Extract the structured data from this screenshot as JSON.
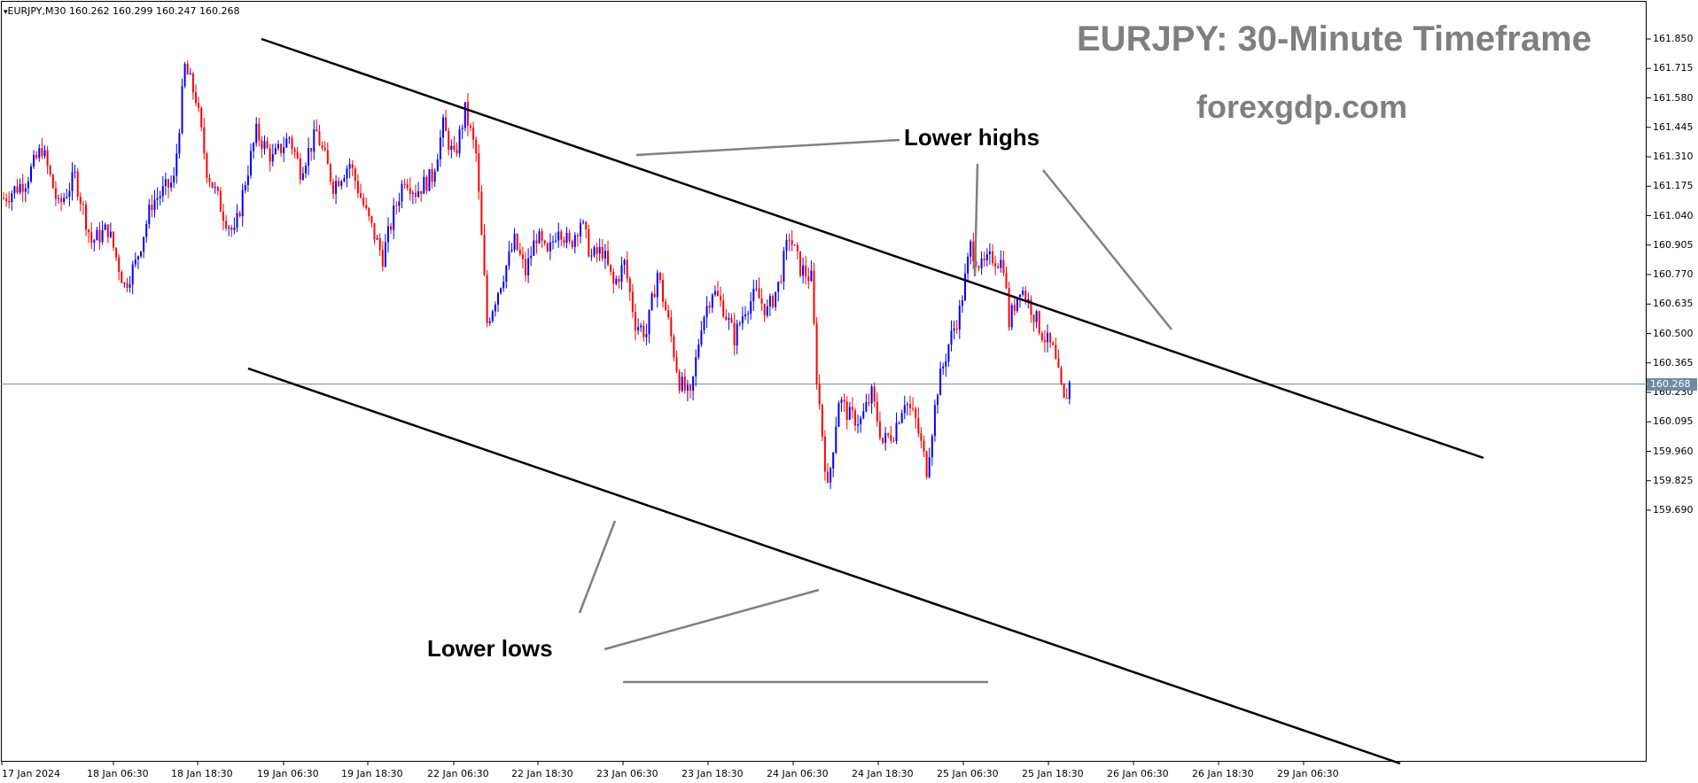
{
  "header": {
    "symbol_label": "EURJPY,M30",
    "ohlc": "160.262 160.299 160.247 160.268"
  },
  "overlay": {
    "title": "EURJPY: 30-Minute Timeframe",
    "site": "forexgdp.com",
    "lower_highs_label": "Lower highs",
    "lower_lows_label": "Lower lows"
  },
  "colors": {
    "bull_candle": "#0000ff",
    "bear_candle": "#ff0000",
    "channel_line": "#000000",
    "pointer_line": "#808080",
    "price_line": "#6e8aa6",
    "text_watermark": "#7f7f7f"
  },
  "chart_data": {
    "type": "candlestick",
    "symbol": "EURJPY",
    "timeframe": "M30",
    "ylim": [
      159.62,
      161.92
    ],
    "y_ticks": [
      "161.850",
      "161.715",
      "161.580",
      "161.445",
      "161.310",
      "161.175",
      "161.040",
      "160.905",
      "160.770",
      "160.635",
      "160.500",
      "160.365",
      "160.230",
      "160.095",
      "159.960",
      "159.825",
      "159.690"
    ],
    "x_ticks": [
      "17 Jan 2024",
      "18 Jan 06:30",
      "18 Jan 18:30",
      "19 Jan 06:30",
      "19 Jan 18:30",
      "22 Jan 06:30",
      "22 Jan 18:30",
      "23 Jan 06:30",
      "23 Jan 18:30",
      "24 Jan 06:30",
      "24 Jan 18:30",
      "25 Jan 06:30",
      "25 Jan 18:30",
      "26 Jan 06:30",
      "26 Jan 18:30",
      "29 Jan 06:30"
    ],
    "current_price": "160.268",
    "close_path": [
      [
        0,
        161.12
      ],
      [
        8,
        161.2
      ],
      [
        14,
        161.35
      ],
      [
        20,
        161.08
      ],
      [
        26,
        161.22
      ],
      [
        32,
        160.92
      ],
      [
        38,
        160.98
      ],
      [
        44,
        160.72
      ],
      [
        48,
        160.82
      ],
      [
        54,
        161.1
      ],
      [
        62,
        161.2
      ],
      [
        66,
        161.72
      ],
      [
        70,
        161.58
      ],
      [
        74,
        161.25
      ],
      [
        80,
        161.05
      ],
      [
        84,
        160.95
      ],
      [
        88,
        161.2
      ],
      [
        92,
        161.42
      ],
      [
        98,
        161.3
      ],
      [
        104,
        161.4
      ],
      [
        108,
        161.25
      ],
      [
        114,
        161.42
      ],
      [
        120,
        161.18
      ],
      [
        126,
        161.28
      ],
      [
        132,
        161.05
      ],
      [
        138,
        160.85
      ],
      [
        142,
        161.05
      ],
      [
        146,
        161.22
      ],
      [
        150,
        161.15
      ],
      [
        156,
        161.22
      ],
      [
        160,
        161.45
      ],
      [
        164,
        161.3
      ],
      [
        168,
        161.52
      ],
      [
        172,
        161.32
      ],
      [
        176,
        160.55
      ],
      [
        180,
        160.7
      ],
      [
        186,
        160.92
      ],
      [
        190,
        160.78
      ],
      [
        194,
        160.95
      ],
      [
        198,
        160.85
      ],
      [
        202,
        161.0
      ],
      [
        206,
        160.9
      ],
      [
        210,
        161.02
      ],
      [
        214,
        160.85
      ],
      [
        218,
        160.88
      ],
      [
        222,
        160.72
      ],
      [
        226,
        160.82
      ],
      [
        230,
        160.55
      ],
      [
        234,
        160.5
      ],
      [
        238,
        160.78
      ],
      [
        242,
        160.55
      ],
      [
        246,
        160.28
      ],
      [
        250,
        160.2
      ],
      [
        254,
        160.55
      ],
      [
        258,
        160.7
      ],
      [
        262,
        160.62
      ],
      [
        266,
        160.48
      ],
      [
        270,
        160.62
      ],
      [
        274,
        160.68
      ],
      [
        278,
        160.6
      ],
      [
        282,
        160.72
      ],
      [
        286,
        160.95
      ],
      [
        290,
        160.8
      ],
      [
        294,
        160.75
      ],
      [
        296,
        160.3
      ],
      [
        300,
        159.78
      ],
      [
        304,
        160.2
      ],
      [
        308,
        160.12
      ],
      [
        312,
        160.1
      ],
      [
        316,
        160.22
      ],
      [
        320,
        160.0
      ],
      [
        324,
        160.05
      ],
      [
        328,
        160.2
      ],
      [
        332,
        160.1
      ],
      [
        336,
        159.88
      ],
      [
        340,
        160.25
      ],
      [
        344,
        160.45
      ],
      [
        348,
        160.6
      ],
      [
        352,
        160.9
      ],
      [
        356,
        160.8
      ],
      [
        360,
        160.85
      ],
      [
        364,
        160.82
      ],
      [
        366,
        160.55
      ],
      [
        370,
        160.72
      ],
      [
        374,
        160.62
      ],
      [
        378,
        160.5
      ],
      [
        382,
        160.42
      ],
      [
        386,
        160.18
      ],
      [
        388,
        160.27
      ]
    ],
    "annotations": {
      "lower_highs": [
        [
          0.2,
          161.87
        ],
        [
          0.345,
          161.58
        ],
        [
          0.7,
          160.9
        ],
        [
          0.73,
          160.84
        ]
      ],
      "lower_lows": [
        [
          0.34,
          160.38
        ],
        [
          0.5,
          160.26
        ],
        [
          0.6,
          159.68
        ],
        [
          0.67,
          159.89
        ]
      ]
    }
  }
}
